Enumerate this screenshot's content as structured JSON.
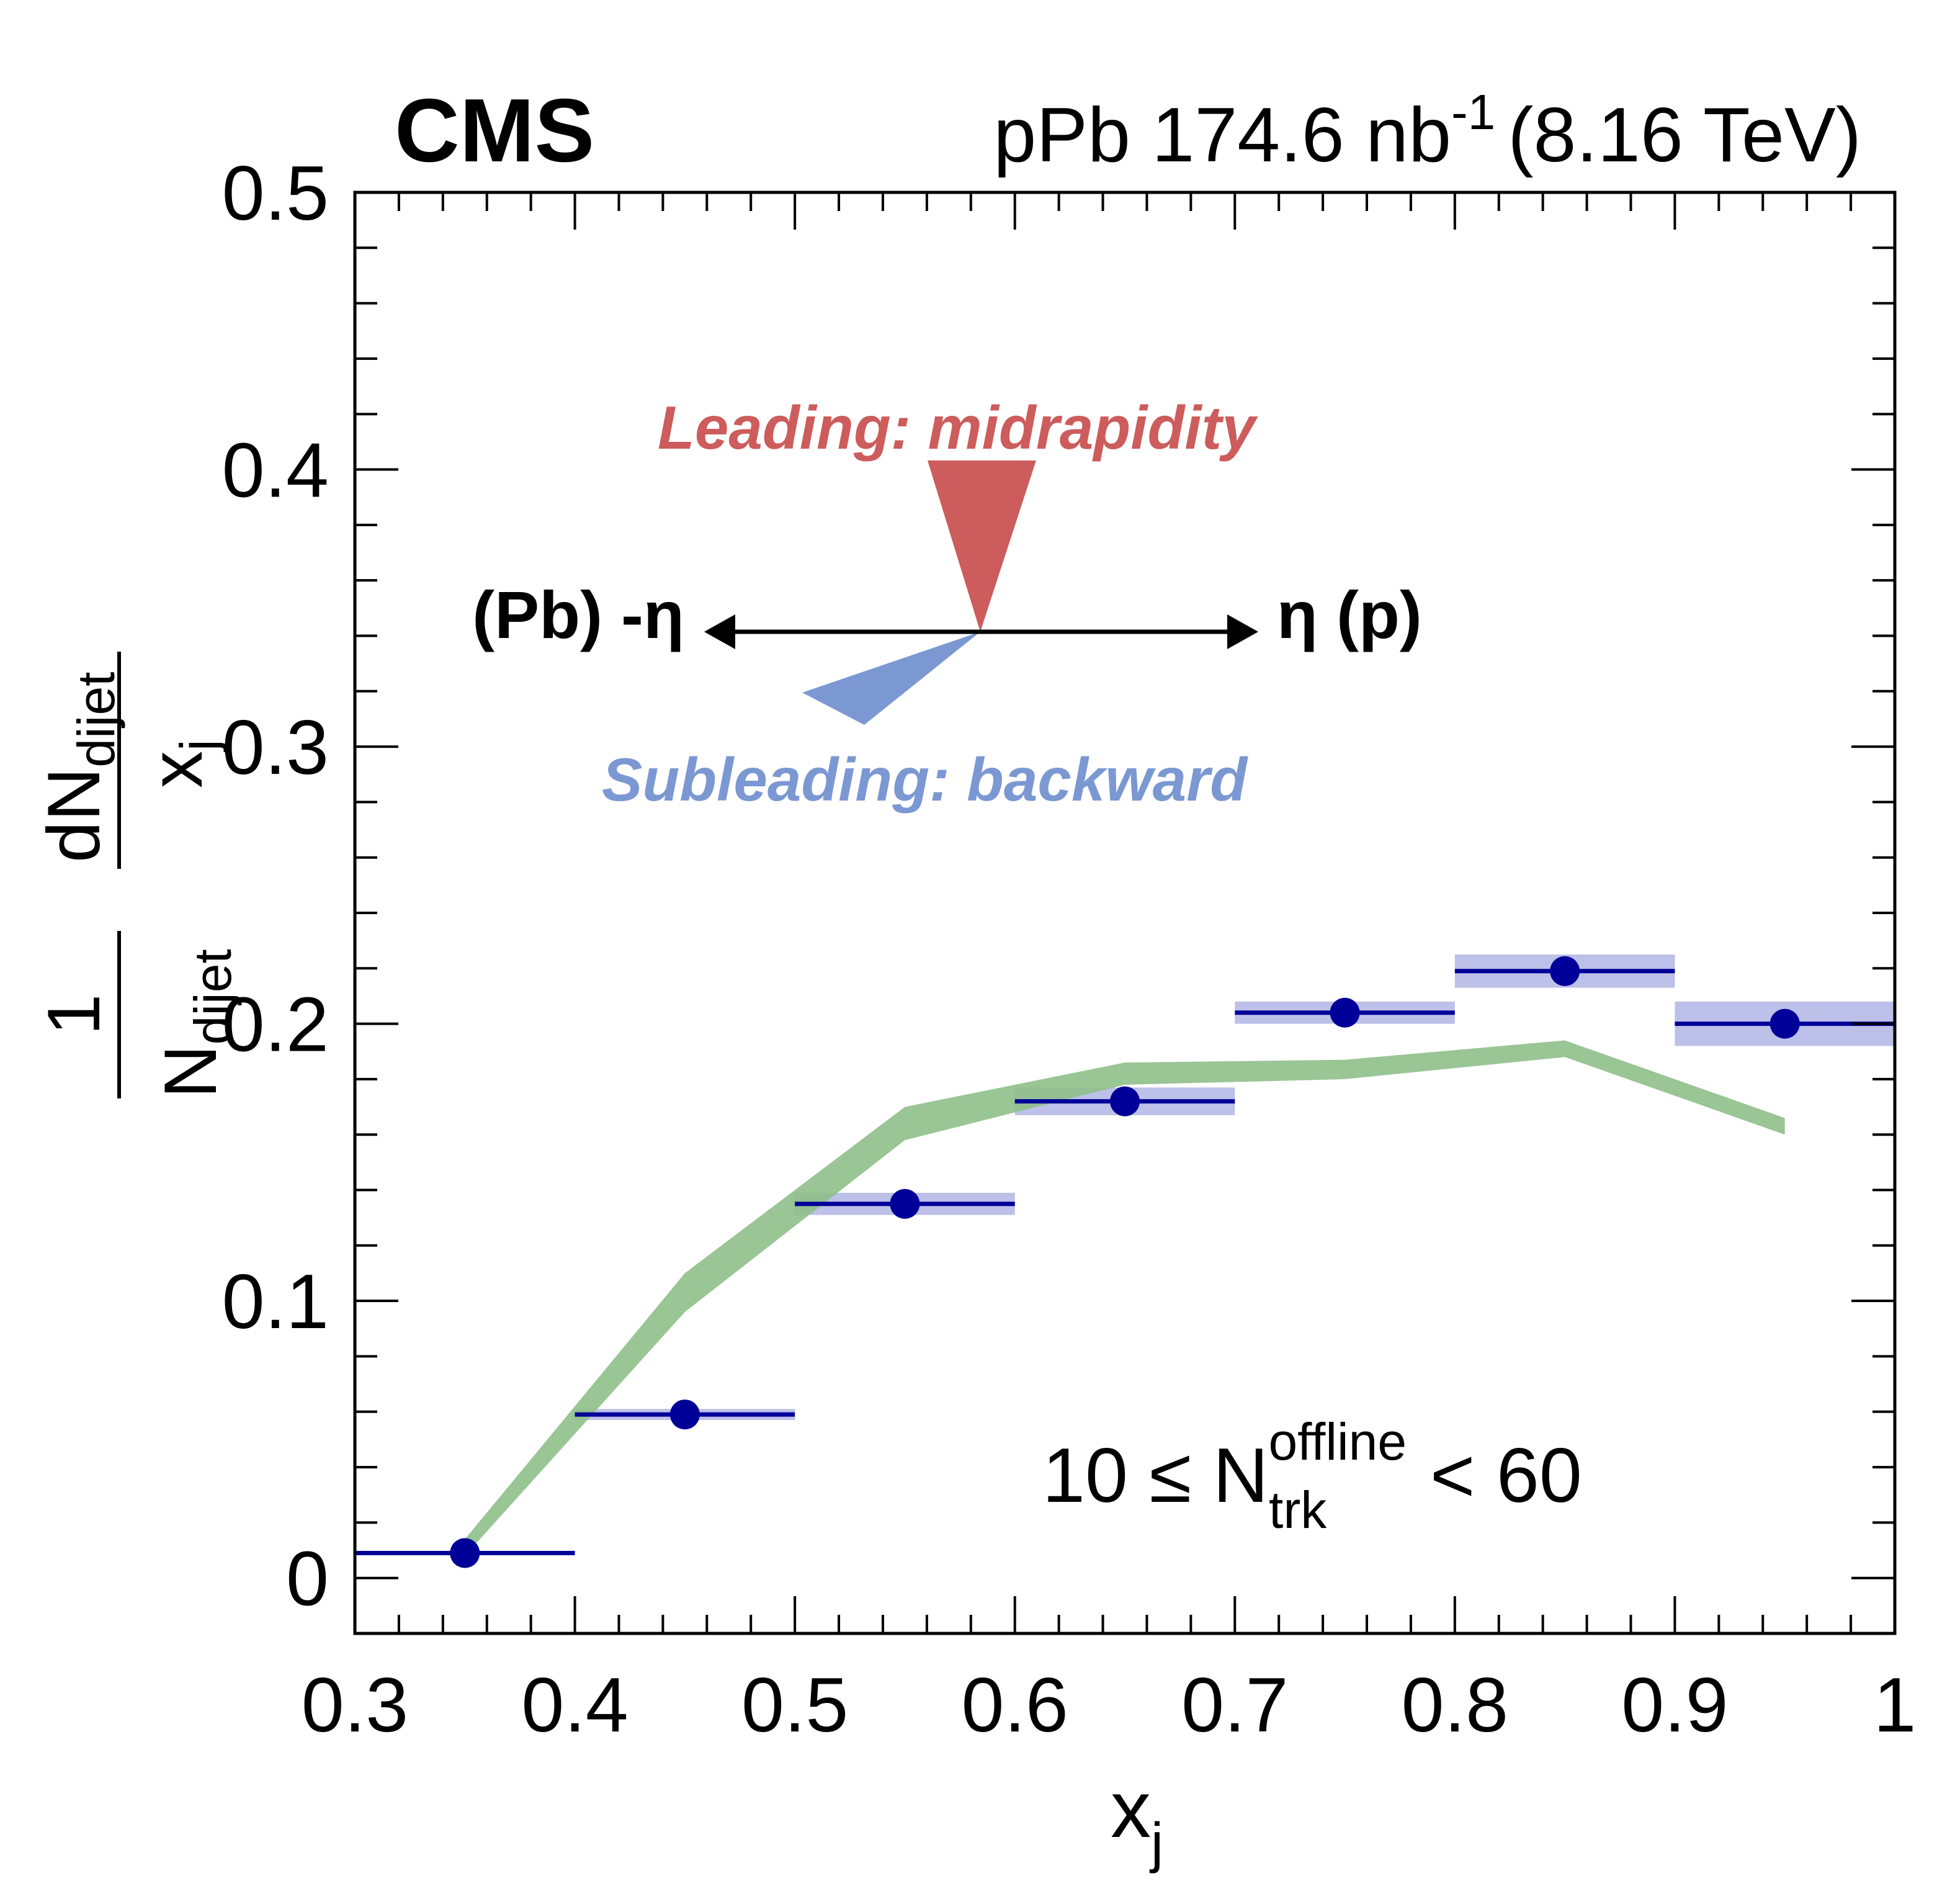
{
  "header": {
    "experiment": "CMS",
    "lumi_prefix": "pPb 174.6 nb",
    "lumi_exp": "-1",
    "energy": "(8.16 TeV)"
  },
  "annotations": {
    "leading": "Leading: midrapidity",
    "subleading": "Subleading: backward",
    "left_arrow": "(Pb) -η",
    "right_arrow": "η (p)",
    "selection_prefix": "10 ≤ N",
    "selection_sup": "offline",
    "selection_sub": "trk",
    "selection_suffix": "< 60"
  },
  "colors": {
    "data": "#000099",
    "data_band": "#a7abe0",
    "model_band": "#8fbf8a",
    "leading": "#cd5c5c",
    "subleading": "#7b98d2"
  },
  "chart_data": {
    "type": "scatter",
    "xlabel": "x",
    "xlabel_sub": "j",
    "ylabel_frac_num": "1",
    "ylabel_frac_den": "N",
    "ylabel_frac_den_sub": "dijet",
    "ylabel_num": "dN",
    "ylabel_num_sub": "dijet",
    "ylabel_den": "x",
    "ylabel_den_sub": "j",
    "xlim": [
      0.3,
      1.0
    ],
    "ylim": [
      -0.02,
      0.5
    ],
    "xticks": [
      "0.3",
      "0.4",
      "0.5",
      "0.6",
      "0.7",
      "0.8",
      "0.9",
      "1"
    ],
    "yticks": [
      "0",
      "0.1",
      "0.2",
      "0.3",
      "0.4",
      "0.5"
    ],
    "data": {
      "x": [
        0.35,
        0.45,
        0.55,
        0.65,
        0.75,
        0.85,
        0.95
      ],
      "xlow": [
        0.3,
        0.4,
        0.5,
        0.6,
        0.7,
        0.8,
        0.9
      ],
      "xhigh": [
        0.4,
        0.5,
        0.6,
        0.7,
        0.8,
        0.9,
        1.0
      ],
      "y": [
        0.009,
        0.059,
        0.135,
        0.172,
        0.204,
        0.219,
        0.2
      ],
      "stat_err": [
        0.001,
        0.002,
        0.002,
        0.002,
        0.003,
        0.004,
        0.003
      ],
      "sys_err": [
        0.0005,
        0.002,
        0.004,
        0.005,
        0.004,
        0.006,
        0.008
      ]
    },
    "model": {
      "x": [
        0.35,
        0.45,
        0.55,
        0.65,
        0.75,
        0.85,
        0.95
      ],
      "ylow": [
        0.008,
        0.096,
        0.158,
        0.178,
        0.18,
        0.188,
        0.16
      ],
      "yhigh": [
        0.014,
        0.11,
        0.17,
        0.186,
        0.187,
        0.194,
        0.166
      ]
    }
  }
}
